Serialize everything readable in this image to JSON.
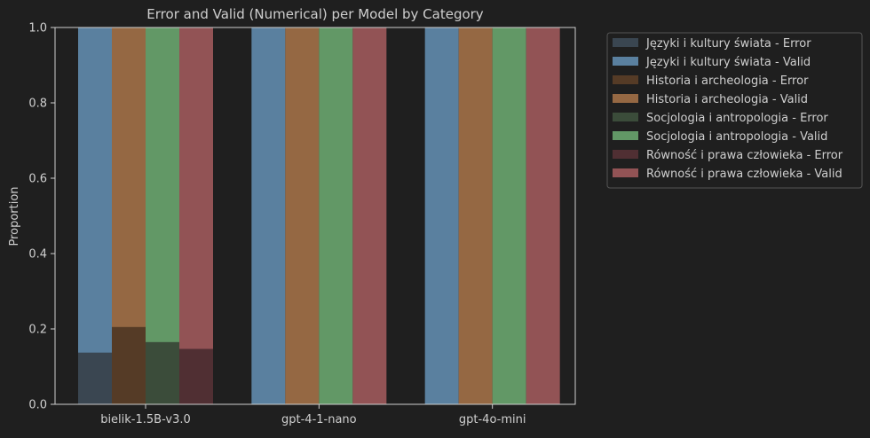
{
  "chart_data": {
    "type": "bar",
    "title": "Error and Valid (Numerical) per Model by Category",
    "xlabel": "",
    "ylabel": "Proportion",
    "ylim": [
      0,
      1.0
    ],
    "yticks": [
      "0.0",
      "0.2",
      "0.4",
      "0.6",
      "0.8",
      "1.0"
    ],
    "grid": false,
    "stacked": true,
    "legend_position": "outside-right",
    "categories": [
      "bielik-1.5B-v3.0",
      "gpt-4-1-nano",
      "gpt-4o-mini"
    ],
    "series": [
      {
        "name": "Języki i kultury świata - Error",
        "group": 0,
        "stack": "bottom",
        "color": "#3a4651",
        "values": [
          0.137,
          0.0,
          0.0
        ]
      },
      {
        "name": "Języki i kultury świata - Valid",
        "group": 0,
        "stack": "top",
        "color": "#5a809f",
        "values": [
          0.863,
          1.0,
          1.0
        ]
      },
      {
        "name": "Historia i archeologia - Error",
        "group": 1,
        "stack": "bottom",
        "color": "#553b26",
        "values": [
          0.205,
          0.0,
          0.0
        ]
      },
      {
        "name": "Historia i archeologia - Valid",
        "group": 1,
        "stack": "top",
        "color": "#956843",
        "values": [
          0.795,
          1.0,
          1.0
        ]
      },
      {
        "name": "Socjologia i antropologia - Error",
        "group": 2,
        "stack": "bottom",
        "color": "#3b4c3a",
        "values": [
          0.165,
          0.0,
          0.0
        ]
      },
      {
        "name": "Socjologia i antropologia - Valid",
        "group": 2,
        "stack": "top",
        "color": "#629866",
        "values": [
          0.835,
          1.0,
          1.0
        ]
      },
      {
        "name": "Równość i prawa człowieka - Error",
        "group": 3,
        "stack": "bottom",
        "color": "#502f33",
        "values": [
          0.147,
          0.0,
          0.0
        ]
      },
      {
        "name": "Równość i prawa człowieka - Valid",
        "group": 3,
        "stack": "top",
        "color": "#925355",
        "values": [
          0.853,
          1.0,
          1.0
        ]
      }
    ],
    "colors": {
      "background": "#1f1f1f",
      "axis": "#cfcfcf",
      "text": "#cfcfcf",
      "legend_border": "#555555"
    }
  }
}
